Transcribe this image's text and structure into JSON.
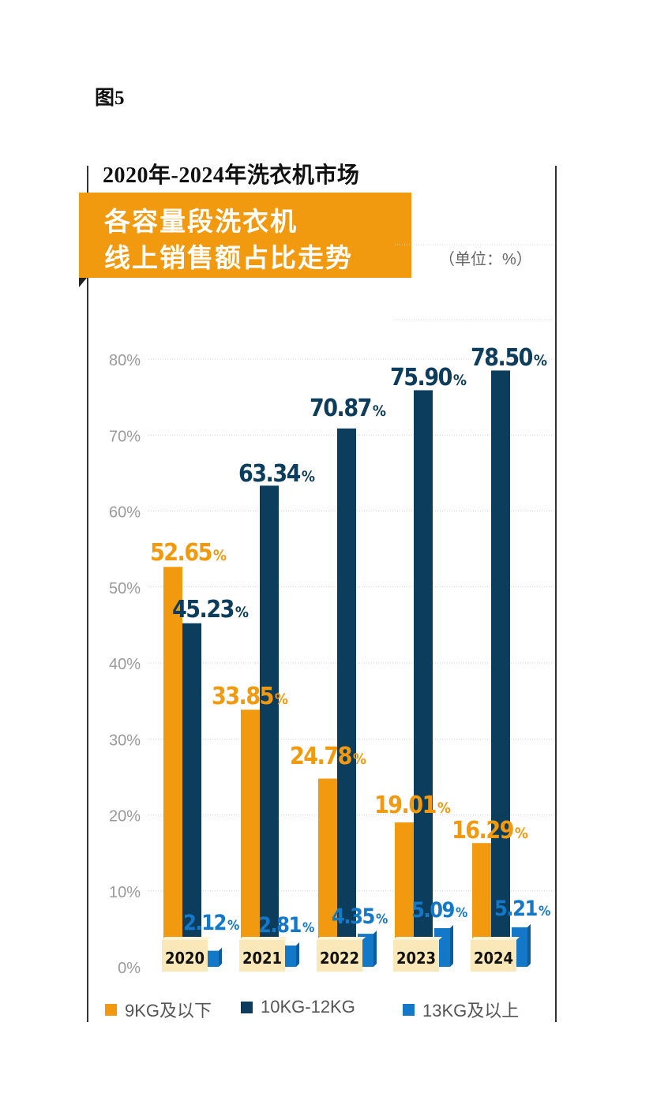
{
  "figure_label": "图5",
  "title_top": "2020年-2024年洗衣机市场",
  "title_box": {
    "line1": "各容量段洗衣机",
    "line2": "线上销售额占比走势"
  },
  "unit_label": "（单位：%）",
  "colors": {
    "orange": "#f29a0f",
    "navy": "#0d3d5c",
    "blue": "#1478c8",
    "year_label_bg": "#fbe8b8"
  },
  "chart_data": {
    "type": "bar",
    "categories": [
      "2020",
      "2021",
      "2022",
      "2023",
      "2024"
    ],
    "y_ticks": [
      "0%",
      "10%",
      "20%",
      "30%",
      "40%",
      "50%",
      "60%",
      "70%",
      "80%"
    ],
    "ylim": [
      0,
      80
    ],
    "series": [
      {
        "name": "9KG及以下",
        "values": [
          52.65,
          33.85,
          24.78,
          19.01,
          16.29
        ],
        "labels": [
          "52.65",
          "33.85",
          "24.78",
          "19.01",
          "16.29"
        ],
        "color": "#f29a0f"
      },
      {
        "name": "10KG-12KG",
        "values": [
          45.23,
          63.34,
          70.87,
          75.9,
          78.5
        ],
        "labels": [
          "45.23",
          "63.34",
          "70.87",
          "75.90",
          "78.50"
        ],
        "color": "#0d3d5c"
      },
      {
        "name": "13KG及以上",
        "values": [
          2.12,
          2.81,
          4.35,
          5.09,
          5.21
        ],
        "labels": [
          "2.12",
          "2.81",
          "4.35",
          "5.09",
          "5.21"
        ],
        "color": "#1478c8"
      }
    ],
    "percent_sign": "%",
    "grid": true,
    "legend_position": "bottom"
  }
}
